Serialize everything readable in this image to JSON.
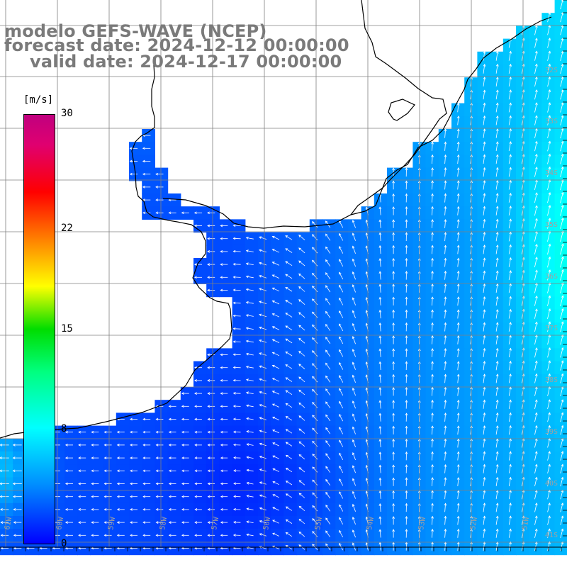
{
  "title": {
    "line1": "modelo GEFS-WAVE (NCEP)",
    "line2": "forecast date: 2024-12-12 00:00:00",
    "line3": "valid date: 2024-12-17 00:00:00"
  },
  "colorbar": {
    "unit": "[m/s]",
    "min": 0,
    "max": 30,
    "ticks": [
      "30",
      "22",
      "15",
      "8",
      "0"
    ],
    "tick_values": [
      30,
      22,
      15,
      8,
      0
    ]
  },
  "map": {
    "lon_labels": [
      "61W",
      "60W",
      "59W",
      "58W",
      "57W",
      "56W",
      "55W",
      "54W",
      "53W",
      "52W",
      "51W"
    ],
    "lat_labels": [
      "32S",
      "33S",
      "34S",
      "35S",
      "36S",
      "37S",
      "38S",
      "39S",
      "40S",
      "41S"
    ],
    "colors": {
      "land": "#ffffff",
      "coast": "#000000",
      "grid": "#808080",
      "arrows": "#ffffff"
    }
  }
}
